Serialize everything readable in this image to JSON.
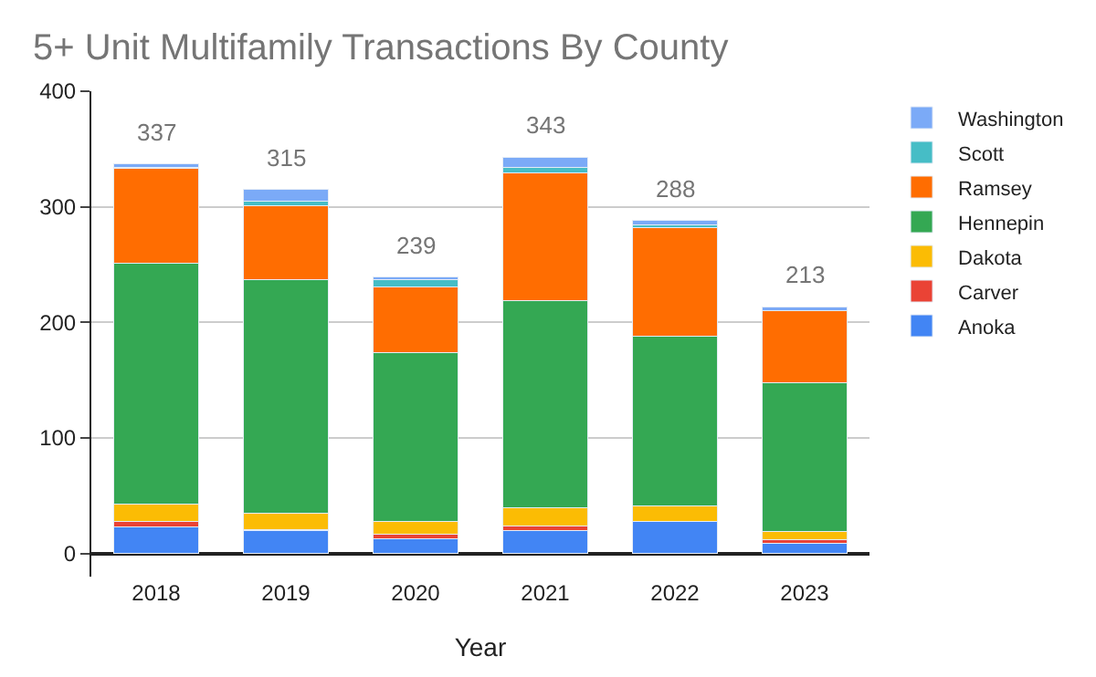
{
  "chart_data": {
    "type": "bar",
    "title": "5+ Unit Multifamily Transactions By County",
    "xlabel": "Year",
    "categories": [
      "2018",
      "2019",
      "2020",
      "2021",
      "2022",
      "2023"
    ],
    "stacked": true,
    "series": [
      {
        "name": "Anoka",
        "color": "#4285f4",
        "values": [
          23,
          20,
          13,
          20,
          28,
          9
        ]
      },
      {
        "name": "Carver",
        "color": "#ea4335",
        "values": [
          5,
          1,
          4,
          4,
          0,
          3
        ]
      },
      {
        "name": "Dakota",
        "color": "#fbbc04",
        "values": [
          15,
          14,
          11,
          16,
          13,
          7
        ]
      },
      {
        "name": "Hennepin",
        "color": "#34a853",
        "values": [
          208,
          202,
          146,
          179,
          147,
          129
        ]
      },
      {
        "name": "Ramsey",
        "color": "#ff6d01",
        "values": [
          82,
          64,
          57,
          110,
          94,
          62
        ]
      },
      {
        "name": "Scott",
        "color": "#46bdc6",
        "values": [
          1,
          4,
          6,
          5,
          2,
          0
        ]
      },
      {
        "name": "Washington",
        "color": "#7baaf7",
        "values": [
          3,
          10,
          2,
          9,
          4,
          3
        ]
      }
    ],
    "totals": [
      "337",
      "315",
      "239",
      "343",
      "288",
      "213"
    ],
    "ylim": [
      -20,
      400
    ],
    "yticks": [
      0,
      100,
      200,
      300,
      400
    ],
    "grid": "y",
    "legend": "right"
  }
}
